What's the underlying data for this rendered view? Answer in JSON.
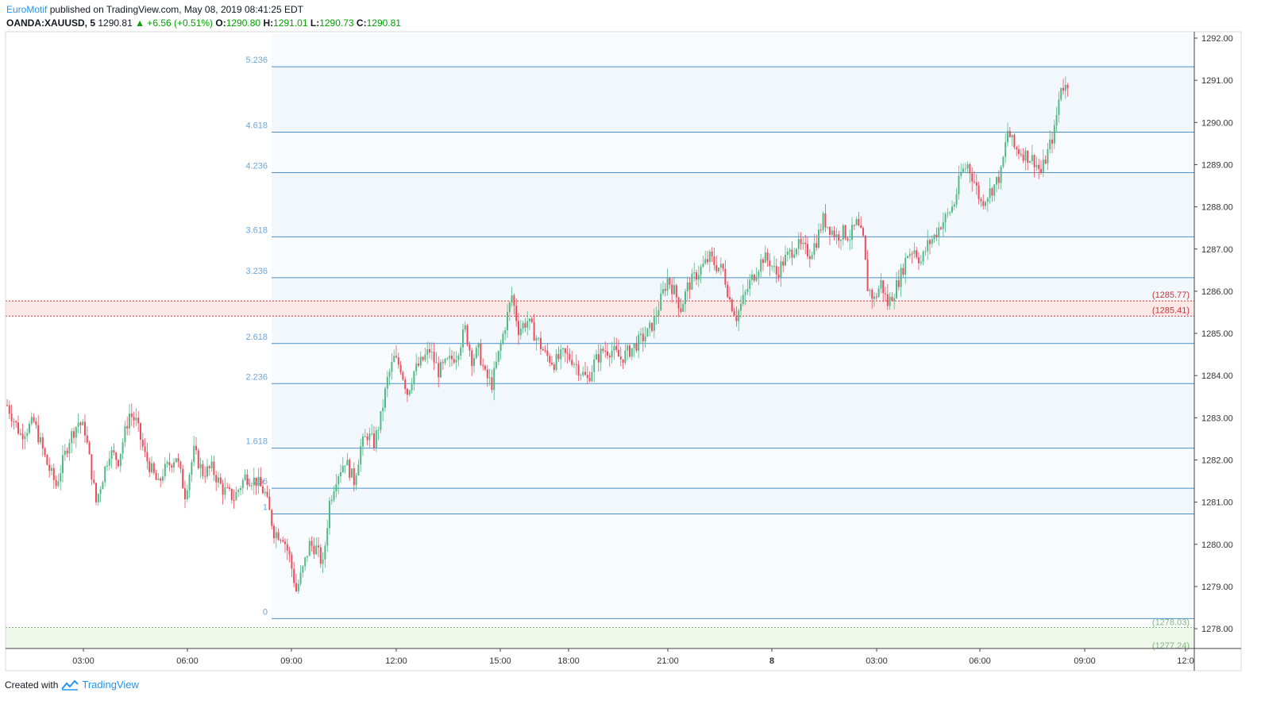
{
  "header": {
    "brand": "EuroMotif",
    "published": "published on TradingView.com, May 08, 2019 08:41:25 EDT",
    "symbol": "OANDA:XAUUSD, 5",
    "last": "1290.81",
    "change": "▲ +6.56 (+0.51%)",
    "open_label": "O:",
    "open": "1290.80",
    "high_label": "H:",
    "high": "1291.01",
    "low_label": "L:",
    "low": "1290.73",
    "close_label": "C:",
    "close": "1290.81"
  },
  "footer": {
    "created_with": "Created with",
    "brand": "TradingView"
  },
  "colors": {
    "up": "#53b987",
    "down": "#eb4d5c",
    "fib_line": "#4a90c8",
    "fib_label": "#6aa7dc",
    "zone_red": "#cc3333",
    "zone_green": "#7cb87c"
  },
  "chart_data": {
    "type": "candlestick",
    "y_range": [
      1277.4,
      1292.2
    ],
    "y_ticks": [
      "1292.00",
      "1291.00",
      "1290.00",
      "1289.00",
      "1288.00",
      "1287.00",
      "1286.00",
      "1285.00",
      "1284.00",
      "1283.00",
      "1282.00",
      "1281.00",
      "1280.00",
      "1279.00",
      "1278.00"
    ],
    "x_ticks": [
      "03:00",
      "06:00",
      "09:00",
      "12:00",
      "15:00",
      "18:00",
      "21:00",
      "8",
      "03:00",
      "06:00",
      "09:00",
      "12:0"
    ],
    "fib_levels": [
      {
        "label": "5.236",
        "price": 1291.32
      },
      {
        "label": "4.618",
        "price": 1289.77
      },
      {
        "label": "4.236",
        "price": 1288.81
      },
      {
        "label": "3.618",
        "price": 1287.29
      },
      {
        "label": "3.236",
        "price": 1286.32
      },
      {
        "label": "2.618",
        "price": 1284.76
      },
      {
        "label": "2.236",
        "price": 1283.81
      },
      {
        "label": "1.618",
        "price": 1282.28
      },
      {
        "label": "1.236",
        "price": 1281.33
      },
      {
        "label": "1",
        "price": 1280.72
      },
      {
        "label": "0",
        "price": 1278.24
      }
    ],
    "zones": [
      {
        "top_label": "(1285.77)",
        "top": 1285.77,
        "bottom_label": "(1285.41)",
        "bottom": 1285.41,
        "color": "red"
      },
      {
        "top_label": "(1278.03)",
        "top": 1278.03,
        "bottom_label": "(1277.24)",
        "bottom": 1277.24,
        "color": "green"
      }
    ],
    "price_path": [
      [
        0,
        1283.3
      ],
      [
        6,
        1282.6
      ],
      [
        12,
        1282.9
      ],
      [
        18,
        1281.9
      ],
      [
        22,
        1281.4
      ],
      [
        28,
        1282.5
      ],
      [
        32,
        1282.9
      ],
      [
        35,
        1282.7
      ],
      [
        40,
        1281.0
      ],
      [
        46,
        1282.2
      ],
      [
        50,
        1282.0
      ],
      [
        55,
        1283.1
      ],
      [
        58,
        1282.9
      ],
      [
        62,
        1282.1
      ],
      [
        68,
        1281.4
      ],
      [
        70,
        1281.7
      ],
      [
        76,
        1282.1
      ],
      [
        80,
        1281.2
      ],
      [
        84,
        1282.2
      ],
      [
        88,
        1281.7
      ],
      [
        92,
        1281.8
      ],
      [
        97,
        1281.3
      ],
      [
        102,
        1281.1
      ],
      [
        107,
        1281.6
      ],
      [
        112,
        1281.5
      ],
      [
        116,
        1281.2
      ],
      [
        120,
        1280.3
      ],
      [
        124,
        1280.2
      ],
      [
        127,
        1279.7
      ],
      [
        130,
        1278.9
      ],
      [
        133,
        1279.4
      ],
      [
        136,
        1280.0
      ],
      [
        139,
        1279.9
      ],
      [
        142,
        1279.5
      ],
      [
        145,
        1281.0
      ],
      [
        148,
        1281.6
      ],
      [
        152,
        1282.0
      ],
      [
        156,
        1281.5
      ],
      [
        159,
        1282.3
      ],
      [
        162,
        1282.6
      ],
      [
        165,
        1282.4
      ],
      [
        168,
        1283.0
      ],
      [
        171,
        1283.9
      ],
      [
        174,
        1284.4
      ],
      [
        177,
        1284.2
      ],
      [
        180,
        1283.6
      ],
      [
        183,
        1284.1
      ],
      [
        186,
        1284.3
      ],
      [
        190,
        1284.6
      ],
      [
        194,
        1284.1
      ],
      [
        198,
        1284.3
      ],
      [
        202,
        1284.5
      ],
      [
        206,
        1285.1
      ],
      [
        209,
        1284.4
      ],
      [
        212,
        1284.6
      ],
      [
        215,
        1284.0
      ],
      [
        218,
        1283.8
      ],
      [
        221,
        1284.5
      ],
      [
        224,
        1285.2
      ],
      [
        227,
        1285.9
      ],
      [
        230,
        1285.1
      ],
      [
        234,
        1285.3
      ],
      [
        238,
        1284.9
      ],
      [
        242,
        1284.5
      ],
      [
        246,
        1284.3
      ],
      [
        250,
        1284.5
      ],
      [
        254,
        1284.4
      ],
      [
        258,
        1284.1
      ],
      [
        261,
        1283.9
      ],
      [
        264,
        1284.3
      ],
      [
        268,
        1284.6
      ],
      [
        272,
        1284.6
      ],
      [
        276,
        1284.4
      ],
      [
        280,
        1284.6
      ],
      [
        284,
        1284.8
      ],
      [
        288,
        1285.0
      ],
      [
        291,
        1285.3
      ],
      [
        294,
        1285.8
      ],
      [
        297,
        1286.3
      ],
      [
        300,
        1286.0
      ],
      [
        303,
        1285.6
      ],
      [
        306,
        1286.1
      ],
      [
        310,
        1286.4
      ],
      [
        313,
        1286.6
      ],
      [
        316,
        1286.8
      ],
      [
        319,
        1286.6
      ],
      [
        322,
        1286.5
      ],
      [
        325,
        1285.8
      ],
      [
        328,
        1285.4
      ],
      [
        331,
        1285.8
      ],
      [
        334,
        1286.2
      ],
      [
        337,
        1286.5
      ],
      [
        340,
        1286.8
      ],
      [
        343,
        1286.7
      ],
      [
        346,
        1286.4
      ],
      [
        349,
        1286.7
      ],
      [
        352,
        1286.9
      ],
      [
        355,
        1287.1
      ],
      [
        358,
        1287.0
      ],
      [
        361,
        1286.9
      ],
      [
        364,
        1287.2
      ],
      [
        367,
        1287.7
      ],
      [
        370,
        1287.5
      ],
      [
        373,
        1287.3
      ],
      [
        376,
        1287.4
      ],
      [
        379,
        1287.3
      ],
      [
        382,
        1287.6
      ],
      [
        385,
        1287.2
      ],
      [
        387,
        1286.1
      ],
      [
        390,
        1285.8
      ],
      [
        393,
        1286.2
      ],
      [
        396,
        1285.7
      ],
      [
        399,
        1286.0
      ],
      [
        402,
        1286.4
      ],
      [
        405,
        1286.9
      ],
      [
        408,
        1287.0
      ],
      [
        411,
        1286.7
      ],
      [
        414,
        1287.1
      ],
      [
        417,
        1287.3
      ],
      [
        420,
        1287.6
      ],
      [
        423,
        1287.8
      ],
      [
        426,
        1288.1
      ],
      [
        429,
        1288.8
      ],
      [
        432,
        1289.0
      ],
      [
        435,
        1288.6
      ],
      [
        438,
        1288.1
      ],
      [
        441,
        1288.3
      ],
      [
        444,
        1288.5
      ],
      [
        447,
        1288.8
      ],
      [
        450,
        1289.8
      ],
      [
        453,
        1289.4
      ],
      [
        456,
        1289.3
      ],
      [
        459,
        1289.2
      ],
      [
        462,
        1289.1
      ],
      [
        465,
        1288.8
      ],
      [
        468,
        1289.3
      ],
      [
        471,
        1289.8
      ],
      [
        474,
        1290.9
      ],
      [
        477,
        1290.8
      ]
    ],
    "last_price": 1290.81
  }
}
